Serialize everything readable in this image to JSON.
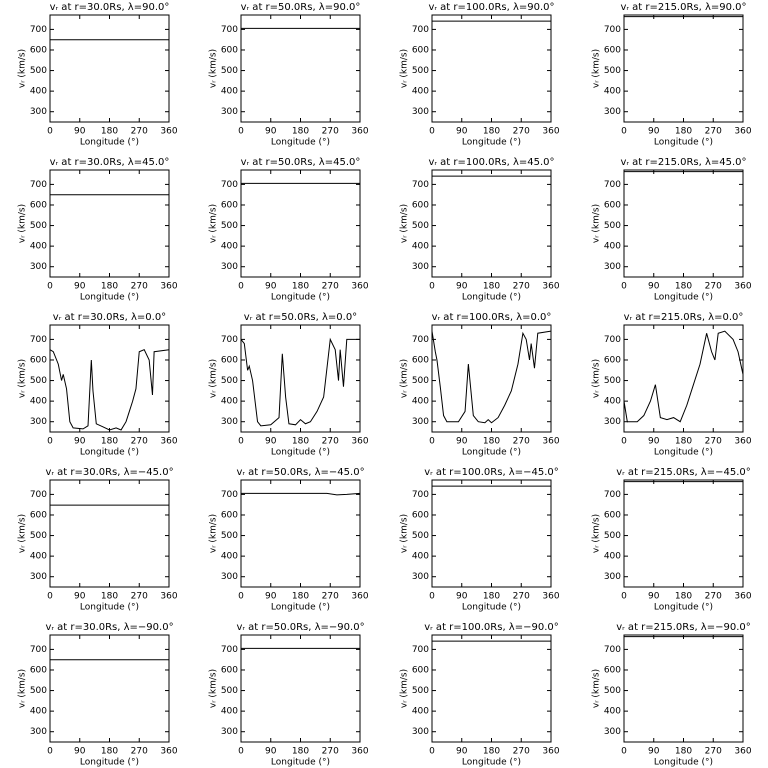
{
  "chart_data": [
    {
      "type": "line",
      "title": "vᵣ at r=30.0Rs,  λ=90.0°",
      "x_label": "Longitude (°)",
      "y_label": "vᵣ (km/s)",
      "x": [
        0,
        360
      ],
      "series": [
        {
          "color": "#000000",
          "values": [
            650,
            650
          ]
        }
      ],
      "xlim": [
        0,
        360
      ],
      "xticks": [
        0,
        90,
        180,
        270,
        360
      ],
      "ylim": [
        250,
        770
      ],
      "yticks": [
        300,
        400,
        500,
        600,
        700
      ]
    },
    {
      "type": "line",
      "title": "vᵣ at r=50.0Rs,  λ=90.0°",
      "x_label": "Longitude (°)",
      "y_label": "vᵣ (km/s)",
      "x": [
        0,
        360
      ],
      "series": [
        {
          "color": "#000000",
          "values": [
            705,
            705
          ]
        }
      ],
      "xlim": [
        0,
        360
      ],
      "xticks": [
        0,
        90,
        180,
        270,
        360
      ],
      "ylim": [
        250,
        770
      ],
      "yticks": [
        300,
        400,
        500,
        600,
        700
      ]
    },
    {
      "type": "line",
      "title": "vᵣ at r=100.0Rs,  λ=90.0°",
      "x_label": "Longitude (°)",
      "y_label": "vᵣ (km/s)",
      "x": [
        0,
        360
      ],
      "series": [
        {
          "color": "#000000",
          "values": [
            740,
            740
          ]
        }
      ],
      "xlim": [
        0,
        360
      ],
      "xticks": [
        0,
        90,
        180,
        270,
        360
      ],
      "ylim": [
        250,
        770
      ],
      "yticks": [
        300,
        400,
        500,
        600,
        700
      ]
    },
    {
      "type": "line",
      "title": "vᵣ at r=215.0Rs,  λ=90.0°",
      "x_label": "Longitude (°)",
      "y_label": "vᵣ (km/s)",
      "x": [
        0,
        360
      ],
      "series": [
        {
          "color": "#000000",
          "values": [
            762,
            762
          ]
        }
      ],
      "xlim": [
        0,
        360
      ],
      "xticks": [
        0,
        90,
        180,
        270,
        360
      ],
      "ylim": [
        250,
        770
      ],
      "yticks": [
        300,
        400,
        500,
        600,
        700
      ]
    },
    {
      "type": "line",
      "title": "vᵣ at r=30.0Rs,  λ=45.0°",
      "x_label": "Longitude (°)",
      "y_label": "vᵣ (km/s)",
      "x": [
        0,
        360
      ],
      "series": [
        {
          "color": "#000000",
          "values": [
            650,
            650
          ]
        }
      ],
      "xlim": [
        0,
        360
      ],
      "xticks": [
        0,
        90,
        180,
        270,
        360
      ],
      "ylim": [
        250,
        770
      ],
      "yticks": [
        300,
        400,
        500,
        600,
        700
      ]
    },
    {
      "type": "line",
      "title": "vᵣ at r=50.0Rs,  λ=45.0°",
      "x_label": "Longitude (°)",
      "y_label": "vᵣ (km/s)",
      "x": [
        0,
        360
      ],
      "series": [
        {
          "color": "#000000",
          "values": [
            705,
            705
          ]
        }
      ],
      "xlim": [
        0,
        360
      ],
      "xticks": [
        0,
        90,
        180,
        270,
        360
      ],
      "ylim": [
        250,
        770
      ],
      "yticks": [
        300,
        400,
        500,
        600,
        700
      ]
    },
    {
      "type": "line",
      "title": "vᵣ at r=100.0Rs,  λ=45.0°",
      "x_label": "Longitude (°)",
      "y_label": "vᵣ (km/s)",
      "x": [
        0,
        360
      ],
      "series": [
        {
          "color": "#000000",
          "values": [
            740,
            740
          ]
        }
      ],
      "xlim": [
        0,
        360
      ],
      "xticks": [
        0,
        90,
        180,
        270,
        360
      ],
      "ylim": [
        250,
        770
      ],
      "yticks": [
        300,
        400,
        500,
        600,
        700
      ]
    },
    {
      "type": "line",
      "title": "vᵣ at r=215.0Rs,  λ=45.0°",
      "x_label": "Longitude (°)",
      "y_label": "vᵣ (km/s)",
      "x": [
        0,
        360
      ],
      "series": [
        {
          "color": "#000000",
          "values": [
            762,
            762
          ]
        }
      ],
      "xlim": [
        0,
        360
      ],
      "xticks": [
        0,
        90,
        180,
        270,
        360
      ],
      "ylim": [
        250,
        770
      ],
      "yticks": [
        300,
        400,
        500,
        600,
        700
      ]
    },
    {
      "type": "line",
      "title": "vᵣ at r=30.0Rs,  λ=0.0°",
      "x_label": "Longitude (°)",
      "y_label": "vᵣ (km/s)",
      "x": [
        0,
        10,
        25,
        35,
        40,
        50,
        60,
        70,
        100,
        115,
        125,
        130,
        140,
        160,
        180,
        200,
        215,
        230,
        240,
        250,
        260,
        270,
        285,
        300,
        310,
        315,
        360
      ],
      "series": [
        {
          "color": "#000000",
          "values": [
            650,
            640,
            580,
            500,
            530,
            460,
            300,
            270,
            265,
            280,
            600,
            450,
            290,
            275,
            260,
            270,
            260,
            300,
            350,
            400,
            460,
            640,
            650,
            600,
            430,
            640,
            650
          ]
        }
      ],
      "xlim": [
        0,
        360
      ],
      "xticks": [
        0,
        90,
        180,
        270,
        360
      ],
      "ylim": [
        250,
        770
      ],
      "yticks": [
        300,
        400,
        500,
        600,
        700
      ]
    },
    {
      "type": "line",
      "title": "vᵣ at r=50.0Rs,  λ=0.0°",
      "x_label": "Longitude (°)",
      "y_label": "vᵣ (km/s)",
      "x": [
        0,
        10,
        20,
        25,
        35,
        50,
        60,
        90,
        115,
        125,
        135,
        145,
        165,
        180,
        195,
        210,
        230,
        250,
        270,
        285,
        295,
        300,
        310,
        320,
        360
      ],
      "series": [
        {
          "color": "#000000",
          "values": [
            700,
            680,
            550,
            570,
            500,
            300,
            280,
            285,
            320,
            630,
            420,
            290,
            285,
            310,
            290,
            300,
            350,
            420,
            700,
            650,
            500,
            650,
            470,
            700,
            700
          ]
        }
      ],
      "xlim": [
        0,
        360
      ],
      "xticks": [
        0,
        90,
        180,
        270,
        360
      ],
      "ylim": [
        250,
        770
      ],
      "yticks": [
        300,
        400,
        500,
        600,
        700
      ]
    },
    {
      "type": "line",
      "title": "vᵣ at r=100.0Rs,  λ=0.0°",
      "x_label": "Longitude (°)",
      "y_label": "vᵣ (km/s)",
      "x": [
        0,
        10,
        15,
        25,
        35,
        45,
        80,
        100,
        110,
        125,
        140,
        160,
        170,
        180,
        200,
        220,
        240,
        260,
        275,
        285,
        295,
        300,
        310,
        320,
        360
      ],
      "series": [
        {
          "color": "#000000",
          "values": [
            740,
            640,
            600,
            470,
            330,
            300,
            300,
            350,
            580,
            330,
            300,
            295,
            310,
            295,
            320,
            380,
            450,
            580,
            730,
            700,
            600,
            680,
            560,
            730,
            740
          ]
        }
      ],
      "xlim": [
        0,
        360
      ],
      "xticks": [
        0,
        90,
        180,
        270,
        360
      ],
      "ylim": [
        250,
        770
      ],
      "yticks": [
        300,
        400,
        500,
        600,
        700
      ]
    },
    {
      "type": "line",
      "title": "vᵣ at r=215.0Rs,  λ=0.0°",
      "x_label": "Longitude (°)",
      "y_label": "vᵣ (km/s)",
      "x": [
        0,
        10,
        40,
        60,
        80,
        95,
        110,
        130,
        150,
        170,
        190,
        210,
        230,
        250,
        265,
        275,
        285,
        305,
        330,
        345,
        360
      ],
      "series": [
        {
          "color": "#000000",
          "values": [
            400,
            300,
            300,
            330,
            400,
            480,
            320,
            310,
            320,
            300,
            380,
            480,
            580,
            730,
            640,
            600,
            730,
            740,
            700,
            640,
            530
          ]
        }
      ],
      "xlim": [
        0,
        360
      ],
      "xticks": [
        0,
        90,
        180,
        270,
        360
      ],
      "ylim": [
        250,
        770
      ],
      "yticks": [
        300,
        400,
        500,
        600,
        700
      ]
    },
    {
      "type": "line",
      "title": "vᵣ at r=30.0Rs,  λ=−45.0°",
      "x_label": "Longitude (°)",
      "y_label": "vᵣ (km/s)",
      "x": [
        0,
        360
      ],
      "series": [
        {
          "color": "#000000",
          "values": [
            648,
            648
          ]
        }
      ],
      "xlim": [
        0,
        360
      ],
      "xticks": [
        0,
        90,
        180,
        270,
        360
      ],
      "ylim": [
        250,
        770
      ],
      "yticks": [
        300,
        400,
        500,
        600,
        700
      ]
    },
    {
      "type": "line",
      "title": "vᵣ at r=50.0Rs,  λ=−45.0°",
      "x_label": "Longitude (°)",
      "y_label": "vᵣ (km/s)",
      "x": [
        0,
        260,
        290,
        320,
        360
      ],
      "series": [
        {
          "color": "#000000",
          "values": [
            705,
            705,
            698,
            700,
            705
          ]
        }
      ],
      "xlim": [
        0,
        360
      ],
      "xticks": [
        0,
        90,
        180,
        270,
        360
      ],
      "ylim": [
        250,
        770
      ],
      "yticks": [
        300,
        400,
        500,
        600,
        700
      ]
    },
    {
      "type": "line",
      "title": "vᵣ at r=100.0Rs,  λ=−45.0°",
      "x_label": "Longitude (°)",
      "y_label": "vᵣ (km/s)",
      "x": [
        0,
        360
      ],
      "series": [
        {
          "color": "#000000",
          "values": [
            740,
            740
          ]
        }
      ],
      "xlim": [
        0,
        360
      ],
      "xticks": [
        0,
        90,
        180,
        270,
        360
      ],
      "ylim": [
        250,
        770
      ],
      "yticks": [
        300,
        400,
        500,
        600,
        700
      ]
    },
    {
      "type": "line",
      "title": "vᵣ at r=215.0Rs,  λ=−45.0°",
      "x_label": "Longitude (°)",
      "y_label": "vᵣ (km/s)",
      "x": [
        0,
        360
      ],
      "series": [
        {
          "color": "#000000",
          "values": [
            762,
            762
          ]
        }
      ],
      "xlim": [
        0,
        360
      ],
      "xticks": [
        0,
        90,
        180,
        270,
        360
      ],
      "ylim": [
        250,
        770
      ],
      "yticks": [
        300,
        400,
        500,
        600,
        700
      ]
    },
    {
      "type": "line",
      "title": "vᵣ at r=30.0Rs,  λ=−90.0°",
      "x_label": "Longitude (°)",
      "y_label": "vᵣ (km/s)",
      "x": [
        0,
        360
      ],
      "series": [
        {
          "color": "#000000",
          "values": [
            650,
            650
          ]
        }
      ],
      "xlim": [
        0,
        360
      ],
      "xticks": [
        0,
        90,
        180,
        270,
        360
      ],
      "ylim": [
        250,
        770
      ],
      "yticks": [
        300,
        400,
        500,
        600,
        700
      ]
    },
    {
      "type": "line",
      "title": "vᵣ at r=50.0Rs,  λ=−90.0°",
      "x_label": "Longitude (°)",
      "y_label": "vᵣ (km/s)",
      "x": [
        0,
        360
      ],
      "series": [
        {
          "color": "#000000",
          "values": [
            705,
            705
          ]
        }
      ],
      "xlim": [
        0,
        360
      ],
      "xticks": [
        0,
        90,
        180,
        270,
        360
      ],
      "ylim": [
        250,
        770
      ],
      "yticks": [
        300,
        400,
        500,
        600,
        700
      ]
    },
    {
      "type": "line",
      "title": "vᵣ at r=100.0Rs,  λ=−90.0°",
      "x_label": "Longitude (°)",
      "y_label": "vᵣ (km/s)",
      "x": [
        0,
        360
      ],
      "series": [
        {
          "color": "#000000",
          "values": [
            740,
            740
          ]
        }
      ],
      "xlim": [
        0,
        360
      ],
      "xticks": [
        0,
        90,
        180,
        270,
        360
      ],
      "ylim": [
        250,
        770
      ],
      "yticks": [
        300,
        400,
        500,
        600,
        700
      ]
    },
    {
      "type": "line",
      "title": "vᵣ at r=215.0Rs,  λ=−90.0°",
      "x_label": "Longitude (°)",
      "y_label": "vᵣ (km/s)",
      "x": [
        0,
        360
      ],
      "series": [
        {
          "color": "#000000",
          "values": [
            762,
            762
          ]
        }
      ],
      "xlim": [
        0,
        360
      ],
      "xticks": [
        0,
        90,
        180,
        270,
        360
      ],
      "ylim": [
        250,
        770
      ],
      "yticks": [
        300,
        400,
        500,
        600,
        700
      ]
    }
  ]
}
